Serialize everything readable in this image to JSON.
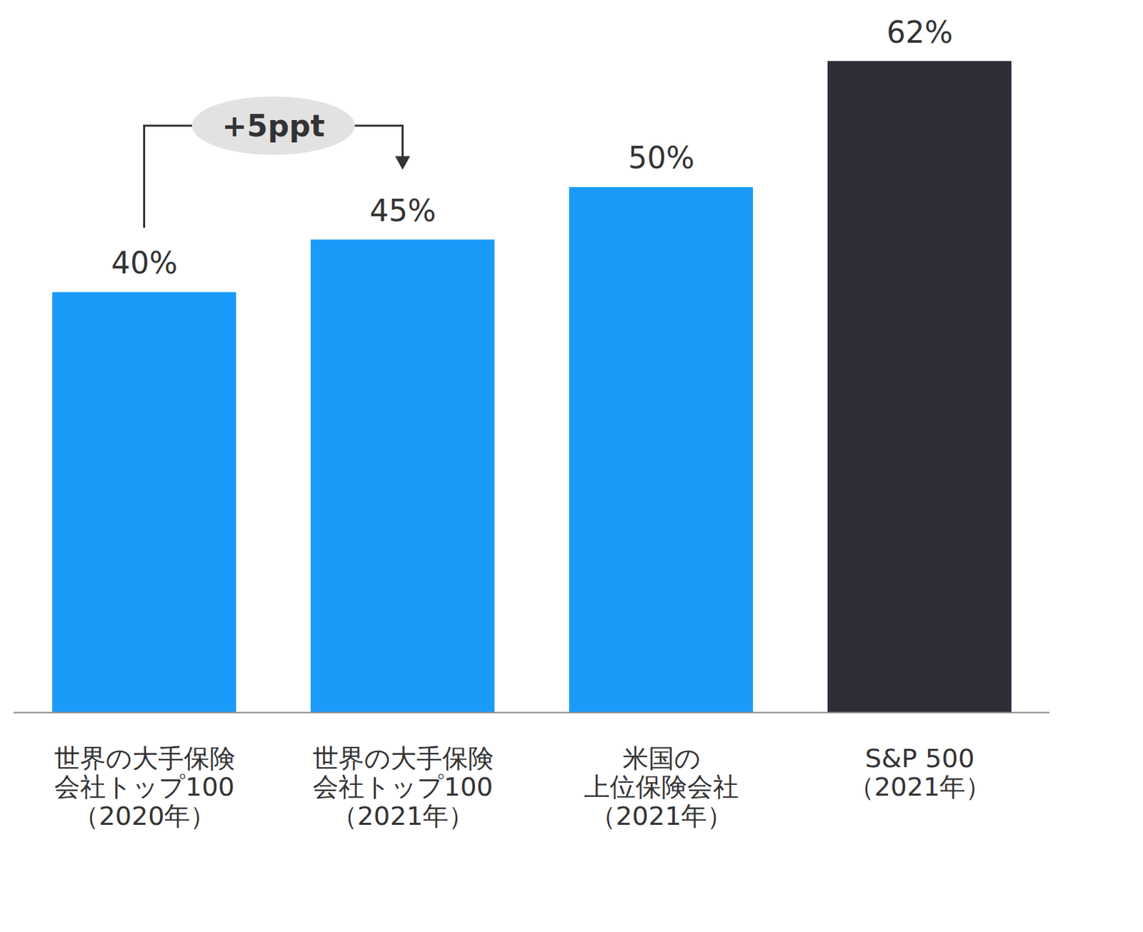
{
  "chart_data": {
    "type": "bar",
    "categories": [
      "世界の大手保険\n会社トップ100\n（2020年）",
      "世界の大手保険\n会社トップ100\n（2021年）",
      "米国の\n上位保険会社\n（2021年）",
      "S&P 500\n（2021年）"
    ],
    "values": [
      40,
      45,
      50,
      62
    ],
    "value_labels": [
      "40%",
      "45%",
      "50%",
      "62%"
    ],
    "colors": [
      "#1b9bf9",
      "#1b9bf9",
      "#1b9bf9",
      "#2e2e38"
    ],
    "ylim": [
      0,
      62
    ],
    "data_labels": true,
    "tick_labels": "x",
    "grid": false,
    "annotations": [
      {
        "text": "+5ppt",
        "from": 0,
        "to": 1
      }
    ]
  }
}
